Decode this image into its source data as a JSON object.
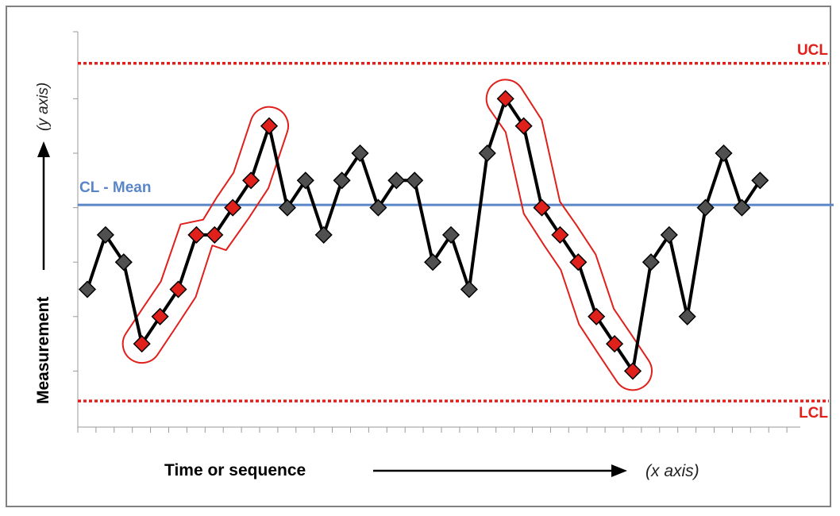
{
  "chart_data": {
    "type": "line",
    "x_label": "Time or sequence",
    "x_note": "(x axis)",
    "y_label": "Measurement",
    "y_note": "(y axis)",
    "ucl_label": "UCL",
    "cl_label": "CL - Mean",
    "lcl_label": "LCL",
    "ucl": 6.65,
    "cl": 4.05,
    "lcl": 0.45,
    "ylim": [
      0,
      7.3
    ],
    "x": [
      1,
      2,
      3,
      4,
      5,
      6,
      7,
      8,
      9,
      10,
      11,
      12,
      13,
      14,
      15,
      16,
      17,
      18,
      19,
      20,
      21,
      22,
      23,
      24,
      25,
      26,
      27,
      28,
      29,
      30,
      31,
      32,
      33,
      34,
      35,
      36,
      37,
      38
    ],
    "values": [
      2.5,
      3.5,
      3.0,
      1.5,
      2.0,
      2.5,
      3.5,
      3.5,
      4.0,
      4.5,
      5.5,
      4.0,
      4.5,
      3.5,
      4.5,
      5.0,
      4.0,
      4.5,
      4.5,
      3.0,
      3.5,
      2.5,
      5.0,
      6.0,
      5.5,
      4.0,
      3.5,
      3.0,
      2.0,
      1.5,
      1.0,
      3.0,
      3.5,
      2.0,
      4.0,
      5.0,
      4.0,
      4.5
    ],
    "highlighted_runs": [
      {
        "label": "upward-trend",
        "start": 4,
        "end": 11
      },
      {
        "label": "downward-trend",
        "start": 24,
        "end": 31
      }
    ],
    "colors": {
      "ucl": "#e0201b",
      "lcl": "#e0201b",
      "cl": "#5a86c8",
      "line": "#000000",
      "marker_normal": "#505050",
      "marker_highlight": "#e0201b",
      "highlight_outline": "#e0201b"
    },
    "grid": false,
    "legend": "none"
  }
}
